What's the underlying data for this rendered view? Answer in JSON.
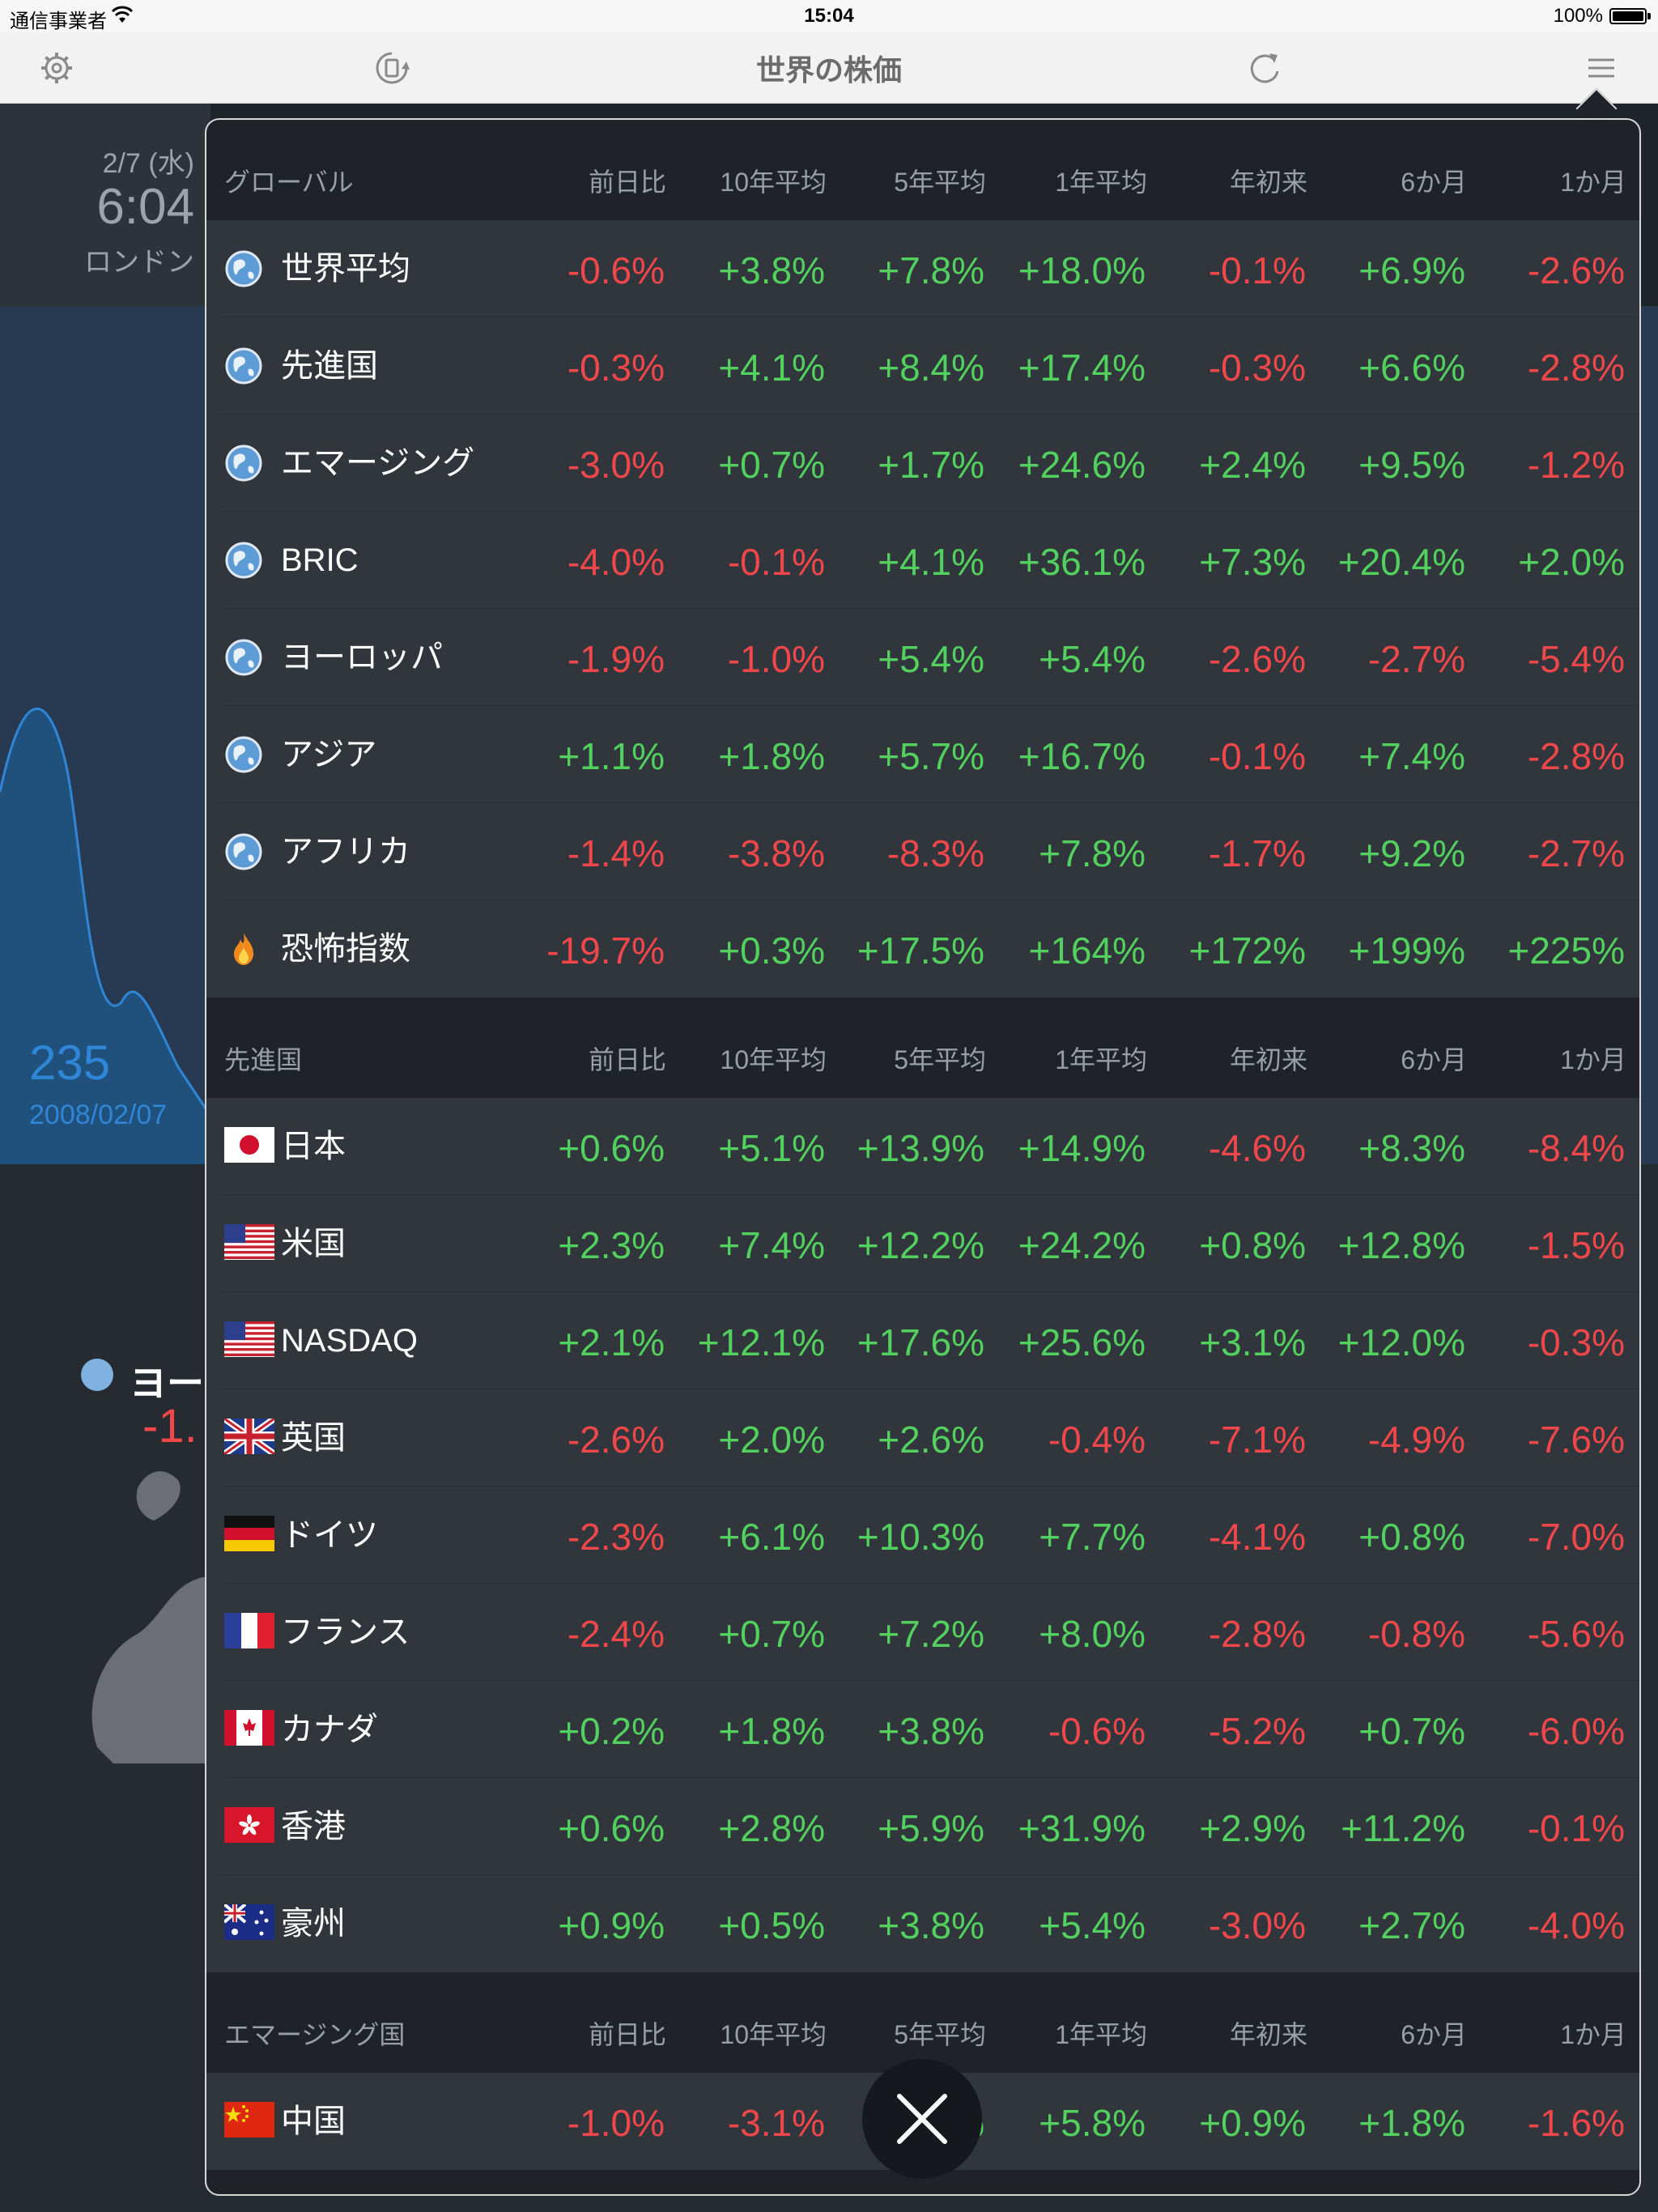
{
  "status_bar": {
    "carrier": "通信事業者",
    "time": "15:04",
    "battery": "100%"
  },
  "nav": {
    "title": "世界の株価",
    "icons": [
      "gear-icon",
      "device-rotate-icon",
      "refresh-icon",
      "menu-icon"
    ]
  },
  "background": {
    "date": "2/7 (水)",
    "clock": "6:04",
    "city": "ロンドン",
    "chart_value": "235",
    "chart_date": "2008/02/07",
    "region_label": "ヨー",
    "region_change": "-1."
  },
  "colors": {
    "positive": "#52d15e",
    "negative": "#f0474b",
    "panel": "#31363d",
    "panel_header": "#1f2329"
  },
  "columns": [
    "前日比",
    "10年平均",
    "5年平均",
    "1年平均",
    "年初来",
    "6か月",
    "1か月"
  ],
  "sections": [
    {
      "title": "グローバル",
      "rows": [
        {
          "icon": "globe-icon",
          "name": "世界平均",
          "values": [
            "-0.6%",
            "+3.8%",
            "+7.8%",
            "+18.0%",
            "-0.1%",
            "+6.9%",
            "-2.6%"
          ]
        },
        {
          "icon": "globe-icon",
          "name": "先進国",
          "values": [
            "-0.3%",
            "+4.1%",
            "+8.4%",
            "+17.4%",
            "-0.3%",
            "+6.6%",
            "-2.8%"
          ]
        },
        {
          "icon": "globe-icon",
          "name": "エマージング",
          "values": [
            "-3.0%",
            "+0.7%",
            "+1.7%",
            "+24.6%",
            "+2.4%",
            "+9.5%",
            "-1.2%"
          ]
        },
        {
          "icon": "globe-icon",
          "name": "BRIC",
          "values": [
            "-4.0%",
            "-0.1%",
            "+4.1%",
            "+36.1%",
            "+7.3%",
            "+20.4%",
            "+2.0%"
          ]
        },
        {
          "icon": "globe-icon",
          "name": "ヨーロッパ",
          "values": [
            "-1.9%",
            "-1.0%",
            "+5.4%",
            "+5.4%",
            "-2.6%",
            "-2.7%",
            "-5.4%"
          ]
        },
        {
          "icon": "globe-icon",
          "name": "アジア",
          "values": [
            "+1.1%",
            "+1.8%",
            "+5.7%",
            "+16.7%",
            "-0.1%",
            "+7.4%",
            "-2.8%"
          ]
        },
        {
          "icon": "globe-icon",
          "name": "アフリカ",
          "values": [
            "-1.4%",
            "-3.8%",
            "-8.3%",
            "+7.8%",
            "-1.7%",
            "+9.2%",
            "-2.7%"
          ]
        },
        {
          "icon": "fire-icon",
          "name": "恐怖指数",
          "values": [
            "-19.7%",
            "+0.3%",
            "+17.5%",
            "+164%",
            "+172%",
            "+199%",
            "+225%"
          ]
        }
      ]
    },
    {
      "title": "先進国",
      "rows": [
        {
          "icon": "flag-japan-icon",
          "name": "日本",
          "values": [
            "+0.6%",
            "+5.1%",
            "+13.9%",
            "+14.9%",
            "-4.6%",
            "+8.3%",
            "-8.4%"
          ]
        },
        {
          "icon": "flag-usa-icon",
          "name": "米国",
          "values": [
            "+2.3%",
            "+7.4%",
            "+12.2%",
            "+24.2%",
            "+0.8%",
            "+12.8%",
            "-1.5%"
          ]
        },
        {
          "icon": "flag-usa-icon",
          "name": "NASDAQ",
          "values": [
            "+2.1%",
            "+12.1%",
            "+17.6%",
            "+25.6%",
            "+3.1%",
            "+12.0%",
            "-0.3%"
          ]
        },
        {
          "icon": "flag-uk-icon",
          "name": "英国",
          "values": [
            "-2.6%",
            "+2.0%",
            "+2.6%",
            "-0.4%",
            "-7.1%",
            "-4.9%",
            "-7.6%"
          ]
        },
        {
          "icon": "flag-germany-icon",
          "name": "ドイツ",
          "values": [
            "-2.3%",
            "+6.1%",
            "+10.3%",
            "+7.7%",
            "-4.1%",
            "+0.8%",
            "-7.0%"
          ]
        },
        {
          "icon": "flag-france-icon",
          "name": "フランス",
          "values": [
            "-2.4%",
            "+0.7%",
            "+7.2%",
            "+8.0%",
            "-2.8%",
            "-0.8%",
            "-5.6%"
          ]
        },
        {
          "icon": "flag-canada-icon",
          "name": "カナダ",
          "values": [
            "+0.2%",
            "+1.8%",
            "+3.8%",
            "-0.6%",
            "-5.2%",
            "+0.7%",
            "-6.0%"
          ]
        },
        {
          "icon": "flag-hongkong-icon",
          "name": "香港",
          "values": [
            "+0.6%",
            "+2.8%",
            "+5.9%",
            "+31.9%",
            "+2.9%",
            "+11.2%",
            "-0.1%"
          ]
        },
        {
          "icon": "flag-australia-icon",
          "name": "豪州",
          "values": [
            "+0.9%",
            "+0.5%",
            "+3.8%",
            "+5.4%",
            "-3.0%",
            "+2.7%",
            "-4.0%"
          ]
        }
      ]
    },
    {
      "title": "エマージング国",
      "rows": [
        {
          "icon": "flag-china-icon",
          "name": "中国",
          "values": [
            "-1.0%",
            "-3.1%",
            "+0.?%",
            "+5.8%",
            "+0.9%",
            "+1.8%",
            "-1.6%"
          ]
        }
      ]
    }
  ]
}
